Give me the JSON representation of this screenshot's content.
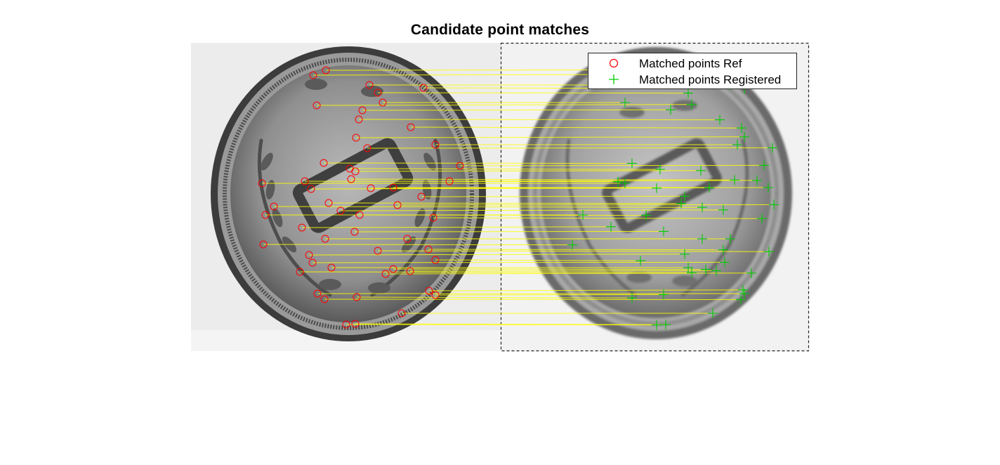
{
  "title": "Candidate point matches",
  "legend": {
    "items": [
      {
        "label": "Matched points Ref",
        "marker": "circle",
        "color": "#ff0000"
      },
      {
        "label": "Matched points Registered",
        "marker": "plus",
        "color": "#00cc00"
      }
    ]
  },
  "colors": {
    "match_line": "#ffff00",
    "ref_marker": "#ff0000",
    "registered_marker": "#00cc00"
  },
  "images": [
    {
      "name": "reference",
      "content": "coin with wreath, grayscale"
    },
    {
      "name": "registered",
      "content": "same coin, scaled and shifted, grayscale"
    }
  ]
}
